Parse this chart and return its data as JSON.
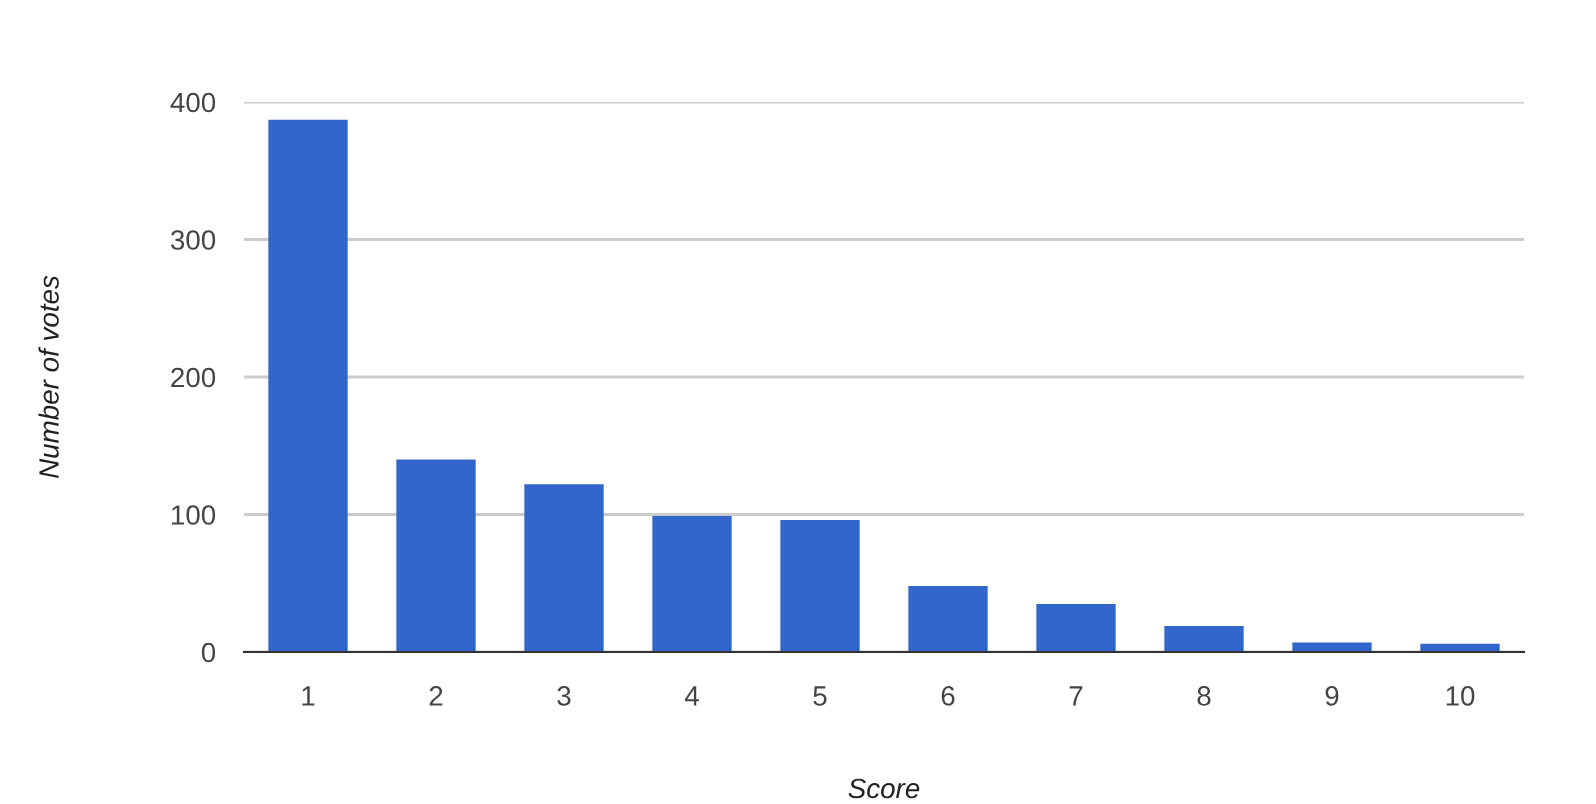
{
  "chart_data": {
    "type": "bar",
    "xlabel": "Score",
    "ylabel": "Number of votes",
    "categories": [
      "1",
      "2",
      "3",
      "4",
      "5",
      "6",
      "7",
      "8",
      "9",
      "10"
    ],
    "values": [
      387,
      140,
      122,
      99,
      96,
      48,
      35,
      19,
      7,
      6
    ],
    "color": "#3366cc",
    "ylim": [
      0,
      400
    ],
    "yticks": [
      0,
      100,
      200,
      300,
      400
    ],
    "grid": "y"
  }
}
